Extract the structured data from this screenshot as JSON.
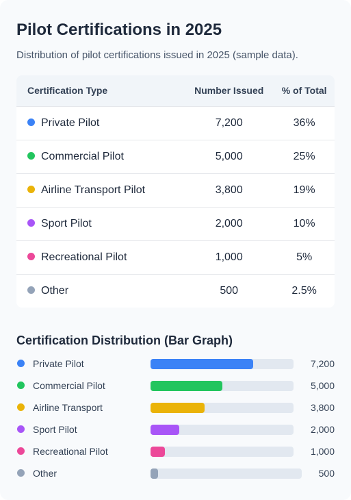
{
  "header": {
    "title": "Pilot Certifications in 2025",
    "subtitle": "Distribution of pilot certifications issued in 2025 (sample data)."
  },
  "table": {
    "columns": [
      "Certification Type",
      "Number Issued",
      "% of Total"
    ],
    "rows": [
      {
        "type": "Private Pilot",
        "issued": "7,200",
        "pct": "36%",
        "color": "#3b82f6"
      },
      {
        "type": "Commercial Pilot",
        "issued": "5,000",
        "pct": "25%",
        "color": "#22c55e"
      },
      {
        "type": "Airline Transport Pilot",
        "issued": "3,800",
        "pct": "19%",
        "color": "#eab308"
      },
      {
        "type": "Sport Pilot",
        "issued": "2,000",
        "pct": "10%",
        "color": "#a855f7"
      },
      {
        "type": "Recreational Pilot",
        "issued": "1,000",
        "pct": "5%",
        "color": "#ec4899"
      },
      {
        "type": "Other",
        "issued": "500",
        "pct": "2.5%",
        "color": "#94a3b8"
      }
    ]
  },
  "bar_section": {
    "title": "Certification Distribution (Bar Graph)"
  },
  "chart_data": {
    "type": "bar",
    "orientation": "horizontal",
    "title": "Certification Distribution (Bar Graph)",
    "categories": [
      "Private Pilot",
      "Commercial Pilot",
      "Airline Transport",
      "Sport Pilot",
      "Recreational Pilot",
      "Other"
    ],
    "values": [
      7200,
      5000,
      3800,
      2000,
      1000,
      500
    ],
    "value_labels": [
      "7,200",
      "5,000",
      "3,800",
      "2,000",
      "1,000",
      "500"
    ],
    "colors": [
      "#3b82f6",
      "#22c55e",
      "#eab308",
      "#a855f7",
      "#ec4899",
      "#94a3b8"
    ],
    "xlim": [
      0,
      10000
    ],
    "grid": false
  }
}
